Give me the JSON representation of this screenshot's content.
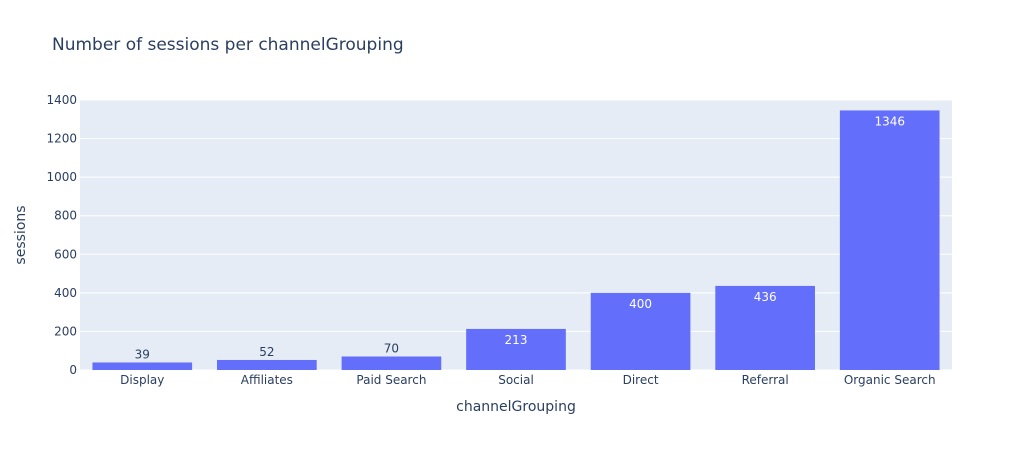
{
  "chart_data": {
    "type": "bar",
    "title": "Number of sessions per channelGrouping",
    "xlabel": "channelGrouping",
    "ylabel": "sessions",
    "categories": [
      "Display",
      "Affiliates",
      "Paid Search",
      "Social",
      "Direct",
      "Referral",
      "Organic Search"
    ],
    "values": [
      39,
      52,
      70,
      213,
      400,
      436,
      1346
    ],
    "ylim": [
      0,
      1400
    ],
    "yticks": [
      0,
      200,
      400,
      600,
      800,
      1000,
      1200,
      1400
    ],
    "grid": true,
    "legend": "none",
    "colors": {
      "bar": "#636efa",
      "plot_background": "#e5ecf6",
      "gridline": "#ffffff",
      "text": "#2a3f5f",
      "label_inside": "#ffffff"
    }
  }
}
